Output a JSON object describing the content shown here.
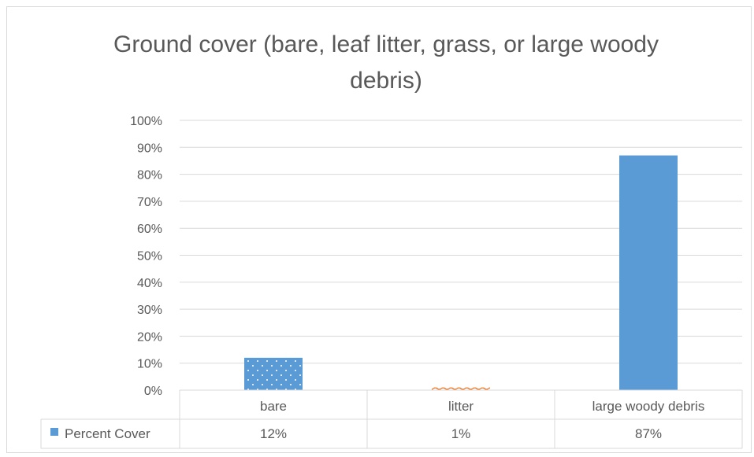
{
  "chart_data": {
    "type": "bar",
    "title": "Ground cover (bare, leaf litter, grass, or large woody debris)",
    "categories": [
      "bare",
      "litter",
      "large woody debris"
    ],
    "series": [
      {
        "name": "Percent Cover",
        "values": [
          12,
          1,
          87
        ],
        "labels": [
          "12%",
          "1%",
          "87%"
        ]
      }
    ],
    "ylim": [
      0,
      100
    ],
    "yticks": [
      "0%",
      "10%",
      "20%",
      "30%",
      "40%",
      "50%",
      "60%",
      "70%",
      "80%",
      "90%",
      "100%"
    ],
    "grid": true,
    "legend": "data-table",
    "data_table": true,
    "colors": {
      "bare": "#5b9bd5",
      "litter": "#ed7d31",
      "large_woody_debris": "#5b9bd5",
      "gridline": "#d9d9d9",
      "text": "#595959"
    },
    "patterns": [
      "dotted",
      "wave",
      "solid"
    ]
  }
}
